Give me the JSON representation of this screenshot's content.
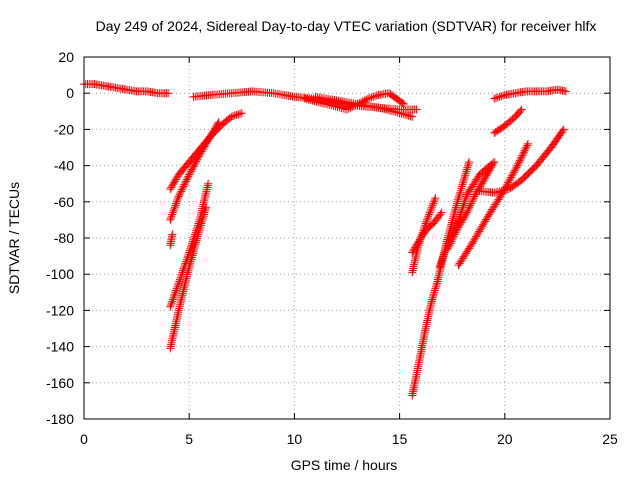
{
  "chart_data": {
    "type": "scatter",
    "title": "Day 249 of 2024, Sidereal Day-to-day VTEC variation (SDTVAR) for receiver hlfx",
    "xlabel": "GPS time / hours",
    "ylabel": "SDTVAR / TECUs",
    "xlim": [
      0,
      25
    ],
    "ylim": [
      -180,
      20
    ],
    "xticks": [
      0,
      5,
      10,
      15,
      20,
      25
    ],
    "yticks": [
      -180,
      -160,
      -140,
      -120,
      -100,
      -80,
      -60,
      -40,
      -20,
      0,
      20
    ],
    "grid": true,
    "marker": "plus",
    "color": "#ff0000",
    "series": [
      {
        "x": [
          0.0,
          0.5,
          1.0,
          1.5,
          2.0,
          2.5,
          3.0,
          3.5,
          4.0
        ],
        "y": [
          5,
          5,
          4,
          3,
          2,
          1,
          1,
          0,
          0
        ]
      },
      {
        "x": [
          5.2,
          6.0,
          7.0,
          8.0,
          9.0,
          10.0,
          11.0,
          12.0,
          13.0,
          14.0,
          15.0,
          15.8
        ],
        "y": [
          -2,
          -1,
          0,
          1,
          0,
          -2,
          -3,
          -5,
          -7,
          -8,
          -9,
          -9
        ]
      },
      {
        "x": [
          10.5,
          11.5,
          12.5,
          13.0,
          13.5,
          14.0,
          14.5,
          15.2
        ],
        "y": [
          -3,
          -6,
          -9,
          -6,
          -3,
          -1,
          0,
          -6
        ]
      },
      {
        "x": [
          11.0,
          12.0,
          13.0,
          14.0,
          15.0,
          15.6
        ],
        "y": [
          -2,
          -4,
          -6,
          -8,
          -11,
          -13
        ]
      },
      {
        "x": [
          4.1,
          4.5,
          5.0,
          5.5,
          6.0,
          6.5,
          7.0,
          7.5
        ],
        "y": [
          -53,
          -45,
          -38,
          -31,
          -24,
          -18,
          -13,
          -11
        ]
      },
      {
        "x": [
          4.1,
          4.5,
          5.0,
          5.5,
          6.0,
          6.4
        ],
        "y": [
          -70,
          -57,
          -45,
          -34,
          -24,
          -16
        ]
      },
      {
        "x": [
          4.1,
          4.2
        ],
        "y": [
          -84,
          -78
        ]
      },
      {
        "x": [
          4.1,
          4.5,
          5.0,
          5.5,
          5.9
        ],
        "y": [
          -118,
          -105,
          -88,
          -70,
          -50
        ]
      },
      {
        "x": [
          4.1,
          4.5,
          5.0,
          5.5,
          5.8
        ],
        "y": [
          -141,
          -120,
          -96,
          -75,
          -63
        ]
      },
      {
        "x": [
          15.6,
          16.0,
          16.3,
          16.6,
          17.0
        ],
        "y": [
          -88,
          -80,
          -75,
          -72,
          -66
        ]
      },
      {
        "x": [
          15.6,
          15.9,
          16.3,
          16.7
        ],
        "y": [
          -99,
          -84,
          -70,
          -58
        ]
      },
      {
        "x": [
          15.6,
          15.9,
          16.2,
          16.5,
          16.8,
          17.2,
          17.7,
          18.3
        ],
        "y": [
          -167,
          -150,
          -132,
          -116,
          -104,
          -84,
          -62,
          -38
        ]
      },
      {
        "x": [
          16.9,
          17.2,
          17.5,
          17.8,
          18.2,
          18.8,
          19.5
        ],
        "y": [
          -96,
          -86,
          -78,
          -70,
          -56,
          -45,
          -38
        ]
      },
      {
        "x": [
          17.3,
          17.7,
          18.2,
          18.6,
          19.0,
          19.4
        ],
        "y": [
          -86,
          -76,
          -66,
          -56,
          -48,
          -40
        ]
      },
      {
        "x": [
          17.8,
          18.5,
          19.2,
          19.9,
          20.6,
          21.1
        ],
        "y": [
          -95,
          -82,
          -68,
          -55,
          -40,
          -28
        ]
      },
      {
        "x": [
          18.8,
          19.5,
          20.2,
          20.8,
          21.5,
          22.2,
          22.8
        ],
        "y": [
          -54,
          -55,
          -53,
          -48,
          -40,
          -30,
          -20
        ]
      },
      {
        "x": [
          19.5,
          20.0,
          20.5,
          20.8
        ],
        "y": [
          -22,
          -18,
          -13,
          -9
        ]
      },
      {
        "x": [
          19.5,
          20.0,
          20.5,
          21.0,
          21.5,
          22.0,
          22.5,
          22.9
        ],
        "y": [
          -3,
          -1,
          0,
          1,
          1,
          1,
          2,
          1
        ]
      }
    ]
  }
}
